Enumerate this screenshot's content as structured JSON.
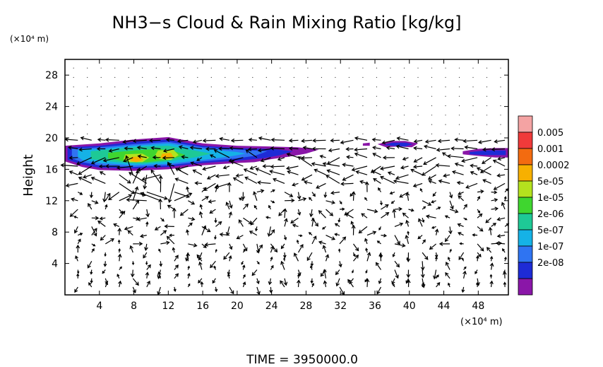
{
  "chart_data": {
    "type": "heatmap",
    "title": "NH3−s Cloud & Rain Mixing Ratio [kg/kg]",
    "ylabel": "Height",
    "y_unit": "(×10⁴ m)",
    "x_unit": "(×10⁴ m)",
    "xlim": [
      0,
      51.5
    ],
    "ylim": [
      0,
      30
    ],
    "x_ticks": [
      "4",
      "8",
      "12",
      "16",
      "20",
      "24",
      "28",
      "32",
      "36",
      "40",
      "44",
      "48"
    ],
    "y_ticks": [
      "4",
      "8",
      "12",
      "16",
      "20",
      "24",
      "28"
    ],
    "x_tick_values": [
      4,
      8,
      12,
      16,
      20,
      24,
      28,
      32,
      36,
      40,
      44,
      48
    ],
    "y_tick_values": [
      4,
      8,
      12,
      16,
      20,
      24,
      28
    ],
    "colorbar": {
      "labels": [
        "0.005",
        "0.001",
        "0.0002",
        "5e-05",
        "1e-05",
        "2e-06",
        "5e-07",
        "1e-07",
        "2e-08"
      ],
      "colors": [
        "#f4a3a3",
        "#f03a3a",
        "#f36b10",
        "#f7b000",
        "#b4e21e",
        "#3fd62f",
        "#1ec996",
        "#15b2e6",
        "#2f74f2",
        "#1e2bd6",
        "#8a16a8"
      ]
    },
    "cloud_regions": [
      {
        "level": 0,
        "polygon": [
          [
            0,
            19.0
          ],
          [
            4,
            19.3
          ],
          [
            8,
            19.8
          ],
          [
            12,
            20.1
          ],
          [
            16,
            19.3
          ],
          [
            20,
            19.0
          ],
          [
            24,
            18.9
          ],
          [
            27,
            18.8
          ],
          [
            29.5,
            18.5
          ],
          [
            28,
            18.0
          ],
          [
            26,
            17.6
          ],
          [
            24,
            17.3
          ],
          [
            22,
            16.9
          ],
          [
            20,
            16.8
          ],
          [
            16,
            16.5
          ],
          [
            12,
            16.0
          ],
          [
            8,
            15.8
          ],
          [
            4,
            15.9
          ],
          [
            2,
            16.3
          ],
          [
            0,
            17.0
          ]
        ]
      },
      {
        "level": 1,
        "polygon": [
          [
            0.3,
            18.8
          ],
          [
            4,
            19.0
          ],
          [
            8,
            19.5
          ],
          [
            12,
            19.8
          ],
          [
            16,
            19.0
          ],
          [
            20,
            18.7
          ],
          [
            24,
            18.6
          ],
          [
            26.5,
            18.3
          ],
          [
            25,
            17.8
          ],
          [
            23,
            17.4
          ],
          [
            20,
            17.1
          ],
          [
            16,
            16.8
          ],
          [
            12,
            16.3
          ],
          [
            8,
            16.1
          ],
          [
            4,
            16.2
          ],
          [
            2,
            16.6
          ],
          [
            0.3,
            17.2
          ]
        ]
      },
      {
        "level": 2,
        "polygon": [
          [
            0.8,
            18.6
          ],
          [
            4,
            18.8
          ],
          [
            8,
            19.2
          ],
          [
            12,
            19.5
          ],
          [
            16,
            18.8
          ],
          [
            20,
            18.5
          ],
          [
            23.5,
            18.3
          ],
          [
            22,
            17.7
          ],
          [
            20,
            17.4
          ],
          [
            16,
            17.0
          ],
          [
            12,
            16.5
          ],
          [
            8,
            16.3
          ],
          [
            4,
            16.5
          ],
          [
            2,
            16.9
          ],
          [
            0.8,
            17.4
          ]
        ]
      },
      {
        "level": 3,
        "polygon": [
          [
            1.5,
            18.5
          ],
          [
            4,
            18.6
          ],
          [
            8,
            19.0
          ],
          [
            12,
            19.3
          ],
          [
            16,
            18.6
          ],
          [
            20,
            18.2
          ],
          [
            21,
            18.0
          ],
          [
            19,
            17.6
          ],
          [
            16,
            17.2
          ],
          [
            12,
            16.7
          ],
          [
            8,
            16.5
          ],
          [
            4,
            16.8
          ],
          [
            2,
            17.2
          ],
          [
            1.5,
            17.6
          ]
        ]
      },
      {
        "level": 4,
        "polygon": [
          [
            3,
            18.3
          ],
          [
            6,
            18.6
          ],
          [
            9,
            18.9
          ],
          [
            12,
            19.0
          ],
          [
            15,
            18.4
          ],
          [
            17,
            18.0
          ],
          [
            15,
            17.5
          ],
          [
            12,
            17.0
          ],
          [
            9,
            16.7
          ],
          [
            6,
            16.9
          ],
          [
            3,
            17.3
          ]
        ]
      },
      {
        "level": 5,
        "polygon": [
          [
            5,
            18.1
          ],
          [
            8,
            18.4
          ],
          [
            11,
            18.6
          ],
          [
            13,
            18.2
          ],
          [
            14,
            17.8
          ],
          [
            12,
            17.2
          ],
          [
            9.5,
            16.9
          ],
          [
            7,
            17.0
          ],
          [
            5,
            17.4
          ]
        ]
      },
      {
        "level": 6,
        "polygon": [
          [
            7,
            17.9
          ],
          [
            9,
            18.0
          ],
          [
            9.8,
            17.5
          ],
          [
            9,
            16.9
          ],
          [
            7.5,
            16.9
          ],
          [
            6.8,
            17.3
          ]
        ]
      },
      {
        "level": 6,
        "polygon": [
          [
            10.8,
            18.4
          ],
          [
            12.6,
            18.5
          ],
          [
            13.2,
            17.8
          ],
          [
            12.3,
            17.2
          ],
          [
            11,
            17.3
          ],
          [
            10.5,
            17.8
          ]
        ]
      },
      {
        "level": 7,
        "polygon": [
          [
            7.8,
            17.6
          ],
          [
            8.8,
            17.6
          ],
          [
            9.1,
            17.2
          ],
          [
            8.3,
            16.9
          ],
          [
            7.6,
            17.1
          ]
        ]
      },
      {
        "level": 7,
        "polygon": [
          [
            11.3,
            18.0
          ],
          [
            12.3,
            18.1
          ],
          [
            12.6,
            17.6
          ],
          [
            11.8,
            17.3
          ],
          [
            11.1,
            17.5
          ]
        ]
      },
      {
        "level": 0,
        "polygon": [
          [
            46.2,
            18.3
          ],
          [
            48,
            18.6
          ],
          [
            50,
            18.7
          ],
          [
            51.5,
            18.7
          ],
          [
            51.5,
            17.5
          ],
          [
            50,
            17.5
          ],
          [
            48,
            17.7
          ],
          [
            46.2,
            17.9
          ]
        ]
      },
      {
        "level": 1,
        "polygon": [
          [
            47,
            18.2
          ],
          [
            49,
            18.4
          ],
          [
            51.2,
            18.4
          ],
          [
            51.2,
            17.8
          ],
          [
            49,
            17.8
          ],
          [
            47,
            17.9
          ]
        ]
      },
      {
        "level": 0,
        "polygon": [
          [
            36.3,
            19.2
          ],
          [
            37.8,
            19.6
          ],
          [
            39.5,
            19.6
          ],
          [
            41,
            19.3
          ],
          [
            40.3,
            18.8
          ],
          [
            38.6,
            18.9
          ],
          [
            37.3,
            18.8
          ]
        ]
      },
      {
        "level": 1,
        "polygon": [
          [
            37,
            19.1
          ],
          [
            38,
            19.4
          ],
          [
            39.6,
            19.4
          ],
          [
            40.4,
            19.2
          ],
          [
            39.5,
            18.9
          ],
          [
            38,
            19.0
          ]
        ]
      },
      {
        "level": 0,
        "polygon": [
          [
            34.6,
            19.3
          ],
          [
            35.4,
            19.4
          ],
          [
            35.4,
            19.0
          ],
          [
            34.6,
            19.0
          ]
        ]
      }
    ],
    "time_label": "TIME  =  3950000.0"
  }
}
